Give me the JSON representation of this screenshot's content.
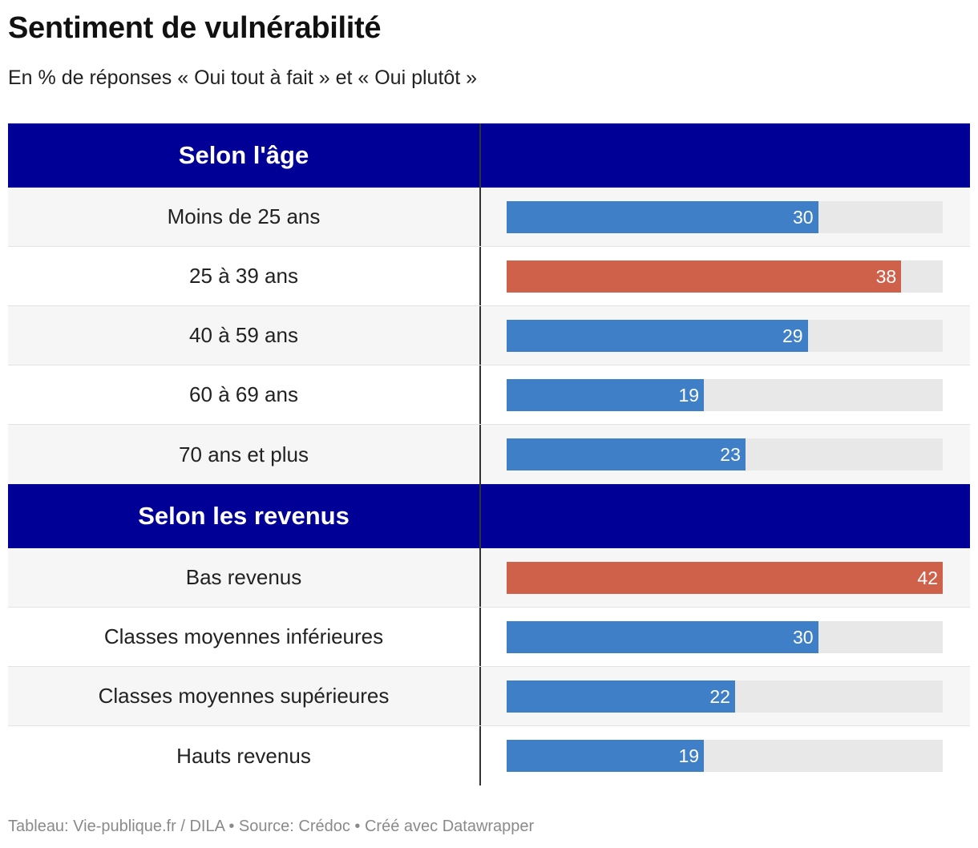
{
  "title": "Sentiment de vulnérabilité",
  "subtitle": "En % de réponses « Oui tout à fait » et « Oui plutôt »",
  "footer": "Tableau: Vie-publique.fr / DILA • Source: Crédoc • Créé avec Datawrapper",
  "colors": {
    "header_bg": "#000096",
    "bar_default": "#3f7fc8",
    "bar_highlight": "#cf604a",
    "bar_track": "#e8e8e8"
  },
  "chart_data": {
    "type": "table",
    "scale_max": 42,
    "groups": [
      {
        "name": "Selon l'âge",
        "rows": [
          {
            "label": "Moins de 25 ans",
            "value": 30,
            "highlight": false
          },
          {
            "label": "25 à 39 ans",
            "value": 38,
            "highlight": true
          },
          {
            "label": "40 à 59 ans",
            "value": 29,
            "highlight": false
          },
          {
            "label": "60 à 69 ans",
            "value": 19,
            "highlight": false
          },
          {
            "label": "70 ans et plus",
            "value": 23,
            "highlight": false
          }
        ]
      },
      {
        "name": "Selon les revenus",
        "rows": [
          {
            "label": "Bas revenus",
            "value": 42,
            "highlight": true
          },
          {
            "label": "Classes moyennes inférieures",
            "value": 30,
            "highlight": false
          },
          {
            "label": "Classes moyennes supérieures",
            "value": 22,
            "highlight": false
          },
          {
            "label": "Hauts revenus",
            "value": 19,
            "highlight": false
          }
        ]
      }
    ]
  }
}
